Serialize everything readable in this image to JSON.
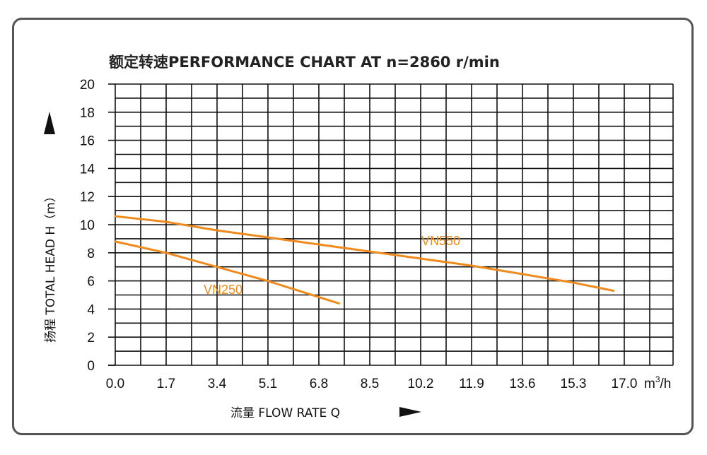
{
  "chart_data": {
    "type": "line",
    "title": "额定转速PERFORMANCE CHART AT  n=2860 r/min",
    "xlabel": "流量 FLOW RATE Q",
    "ylabel": "扬程 TOTAL HEAD H（m）",
    "x_unit": "m³/h",
    "x_ticks": [
      "0.0",
      "1.7",
      "3.4",
      "5.1",
      "6.8",
      "8.5",
      "10.2",
      "11.9",
      "13.6",
      "15.3",
      "17.0"
    ],
    "y_ticks": [
      "0",
      "2",
      "4",
      "6",
      "8",
      "10",
      "12",
      "14",
      "16",
      "18",
      "20"
    ],
    "xlim": [
      0,
      18.7
    ],
    "ylim": [
      0,
      20
    ],
    "grid": true,
    "series": [
      {
        "name": "VN550",
        "color": "#f08a1c",
        "x": [
          0.0,
          1.7,
          3.4,
          5.1,
          6.8,
          8.5,
          10.2,
          11.9,
          13.6,
          15.3,
          16.7
        ],
        "y": [
          10.6,
          10.2,
          9.6,
          9.1,
          8.6,
          8.1,
          7.6,
          7.1,
          6.5,
          5.9,
          5.3
        ]
      },
      {
        "name": "VN250",
        "color": "#f08a1c",
        "x": [
          0.0,
          1.7,
          3.4,
          5.1,
          6.0,
          7.5
        ],
        "y": [
          8.8,
          8.0,
          7.0,
          6.0,
          5.4,
          4.4
        ]
      }
    ]
  }
}
